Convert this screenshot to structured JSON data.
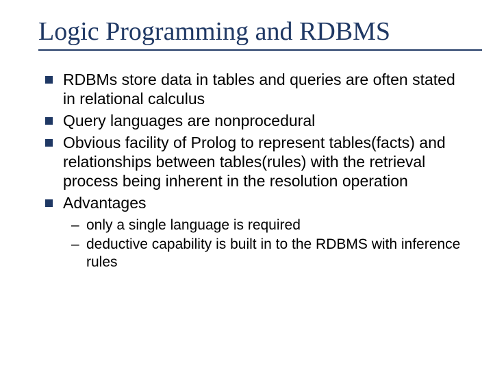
{
  "title": "Logic Programming and RDBMS",
  "colors": {
    "accent": "#1f3864",
    "text": "#000000",
    "background": "#ffffff"
  },
  "typography": {
    "title_family": "Times New Roman",
    "title_size_pt": 38,
    "body_family": "Arial",
    "body_size_pt": 23,
    "sub_size_pt": 21
  },
  "bullets": [
    {
      "text": "RDBMs store data in tables and queries are often stated in relational calculus"
    },
    {
      "text": "Query languages are nonprocedural"
    },
    {
      "text": "Obvious facility of Prolog to represent tables(facts) and relationships between tables(rules) with the retrieval process being inherent in the resolution operation"
    },
    {
      "text": "Advantages",
      "sub": [
        {
          "text": "only a single language is required"
        },
        {
          "text": "deductive capability is built in to the RDBMS with inference rules"
        }
      ]
    }
  ]
}
